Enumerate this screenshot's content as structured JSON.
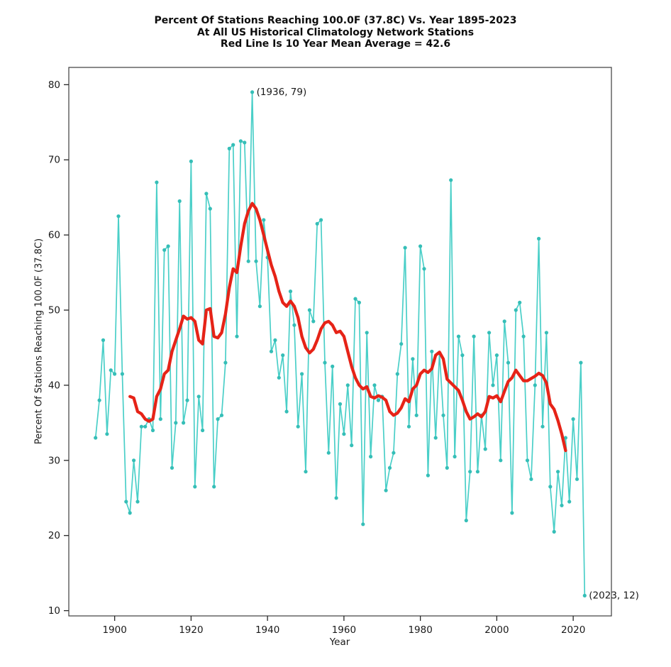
{
  "title": {
    "line1": "Percent Of Stations Reaching 100.0F (37.8C) Vs. Year 1895-2023",
    "line2": "At All US Historical Climatology Network Stations",
    "line3": "Red Line Is 10 Year Mean  Average = 42.6"
  },
  "chart_data": {
    "type": "line",
    "title": "Percent Of Stations Reaching 100.0F (37.8C) Vs. Year 1895-2023 At All US Historical Climatology Network Stations, Red Line Is 10 Year Mean, Average = 42.6",
    "xlabel": "Year",
    "ylabel": "Percent Of Stations Reaching 100.0F (37.8C)",
    "xlim": [
      1888,
      2030
    ],
    "ylim": [
      9.3,
      82.3
    ],
    "x_ticks": [
      1900,
      1920,
      1940,
      1960,
      1980,
      2000,
      2020
    ],
    "y_ticks": [
      10,
      20,
      30,
      40,
      50,
      60,
      70,
      80
    ],
    "grid": false,
    "legend": "none",
    "average": 42.6,
    "annotations": [
      {
        "text": "(1936, 79)",
        "year": 1936,
        "value": 79
      },
      {
        "text": "(2023, 12)",
        "year": 2023,
        "value": 12
      }
    ],
    "series": [
      {
        "name": "annual-percent-of-stations",
        "color": "#4acfc8",
        "marker_color": "#35beb7",
        "x_start": 1895,
        "values": [
          33,
          38,
          46,
          33.5,
          42,
          41.5,
          62.5,
          41.5,
          24.5,
          23,
          30,
          24.5,
          34.5,
          34.5,
          35.5,
          34,
          67,
          35.5,
          58,
          58.5,
          29,
          35,
          64.5,
          35,
          38,
          69.8,
          26.5,
          38.5,
          34,
          65.5,
          63.5,
          26.5,
          35.5,
          36,
          43,
          71.5,
          72,
          46.5,
          72.5,
          72.3,
          56.5,
          79,
          56.5,
          50.5,
          62,
          57,
          44.5,
          46,
          41,
          44,
          36.5,
          52.5,
          48,
          34.5,
          41.5,
          28.5,
          50,
          48.5,
          61.5,
          62,
          43,
          31,
          42.5,
          25,
          37.5,
          33.5,
          40,
          32,
          51.5,
          51,
          21.5,
          47,
          30.5,
          40,
          38,
          38.5,
          26,
          29,
          31,
          41.5,
          45.5,
          58.3,
          34.5,
          43.5,
          36,
          58.5,
          55.5,
          28,
          44.5,
          33,
          44.3,
          36,
          29,
          67.3,
          30.5,
          46.5,
          44,
          22,
          28.5,
          46.5,
          28.5,
          36,
          31.5,
          47,
          40,
          44,
          30,
          48.5,
          43,
          23,
          50,
          51,
          46.5,
          30,
          27.5,
          40,
          59.5,
          34.5,
          47,
          26.5,
          20.5,
          28.5,
          24,
          33,
          24.5,
          35.5,
          27.5,
          43,
          12
        ]
      },
      {
        "name": "10-year-mean",
        "color": "#e62317",
        "marker_color": "none",
        "x_start": 1904,
        "values": [
          38.5,
          38.3,
          36.5,
          36.2,
          35.5,
          35.2,
          35.5,
          38.5,
          39.5,
          41.5,
          42,
          44.5,
          46,
          47.5,
          49.2,
          48.8,
          49,
          48.5,
          46,
          45.5,
          50,
          50.2,
          46.5,
          46.3,
          47,
          49.5,
          53,
          55.5,
          55,
          58.5,
          61.5,
          63.2,
          64.2,
          63.5,
          62,
          60,
          58,
          56,
          54.5,
          52.5,
          51,
          50.5,
          51.2,
          50.5,
          49,
          46.5,
          45,
          44.3,
          44.8,
          46,
          47.5,
          48.3,
          48.5,
          48,
          47,
          47.2,
          46.5,
          44.5,
          42.5,
          41,
          40,
          39.5,
          39.8,
          38.5,
          38.3,
          38.6,
          38.4,
          38,
          36.5,
          36,
          36.3,
          37,
          38.2,
          37.8,
          39.5,
          40,
          41.5,
          42,
          41.7,
          42.2,
          44,
          44.4,
          43.5,
          40.8,
          40.3,
          39.8,
          39.3,
          38,
          36.5,
          35.5,
          35.8,
          36.2,
          35.8,
          36.5,
          38.5,
          38.3,
          38.6,
          37.8,
          39.2,
          40.5,
          41,
          42,
          41.3,
          40.6,
          40.6,
          40.9,
          41.2,
          41.6,
          41.3,
          40.3,
          37.5,
          36.8,
          35.3,
          33.5,
          31.3
        ]
      }
    ]
  }
}
